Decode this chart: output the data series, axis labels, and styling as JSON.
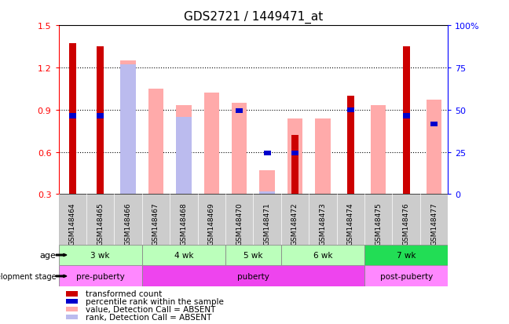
{
  "title": "GDS2721 / 1449471_at",
  "samples": [
    "GSM148464",
    "GSM148465",
    "GSM148466",
    "GSM148467",
    "GSM148468",
    "GSM148469",
    "GSM148470",
    "GSM148471",
    "GSM148472",
    "GSM148473",
    "GSM148474",
    "GSM148475",
    "GSM148476",
    "GSM148477"
  ],
  "transformed_count": [
    1.37,
    1.35,
    null,
    null,
    null,
    null,
    null,
    null,
    0.72,
    null,
    1.0,
    null,
    1.35,
    null
  ],
  "percentile_rank_y": [
    0.84,
    0.84,
    null,
    null,
    null,
    null,
    0.875,
    0.575,
    0.575,
    null,
    0.88,
    null,
    0.84,
    0.78
  ],
  "absent_value": [
    null,
    null,
    1.25,
    1.05,
    0.93,
    1.02,
    0.95,
    0.47,
    0.84,
    0.84,
    null,
    0.93,
    null,
    0.97
  ],
  "absent_rank_y": [
    null,
    null,
    1.22,
    null,
    0.85,
    null,
    null,
    0.32,
    null,
    null,
    null,
    null,
    null,
    null
  ],
  "ylim": [
    0.3,
    1.5
  ],
  "yticks_left": [
    0.3,
    0.6,
    0.9,
    1.2,
    1.5
  ],
  "yticks_right": [
    0,
    25,
    50,
    75,
    100
  ],
  "ytick_right_labels": [
    "0",
    "25",
    "50",
    "75",
    "100%"
  ],
  "color_red": "#cc0000",
  "color_blue": "#0000cc",
  "color_pink": "#ffaaaa",
  "color_lavender": "#bbbbee",
  "color_gray_bg": "#cccccc",
  "age_groups": [
    {
      "label": "3 wk",
      "start": 0,
      "end": 2,
      "color": "#bbffbb"
    },
    {
      "label": "4 wk",
      "start": 3,
      "end": 5,
      "color": "#bbffbb"
    },
    {
      "label": "5 wk",
      "start": 6,
      "end": 7,
      "color": "#bbffbb"
    },
    {
      "label": "6 wk",
      "start": 8,
      "end": 10,
      "color": "#bbffbb"
    },
    {
      "label": "7 wk",
      "start": 11,
      "end": 13,
      "color": "#22dd55"
    }
  ],
  "dev_groups": [
    {
      "label": "pre-puberty",
      "start": 0,
      "end": 2,
      "color": "#ff88ff"
    },
    {
      "label": "puberty",
      "start": 3,
      "end": 10,
      "color": "#ee44ee"
    },
    {
      "label": "post-puberty",
      "start": 11,
      "end": 13,
      "color": "#ff88ff"
    }
  ],
  "legend_items": [
    {
      "label": "transformed count",
      "color": "#cc0000"
    },
    {
      "label": "percentile rank within the sample",
      "color": "#0000cc"
    },
    {
      "label": "value, Detection Call = ABSENT",
      "color": "#ffaaaa"
    },
    {
      "label": "rank, Detection Call = ABSENT",
      "color": "#bbbbee"
    }
  ]
}
